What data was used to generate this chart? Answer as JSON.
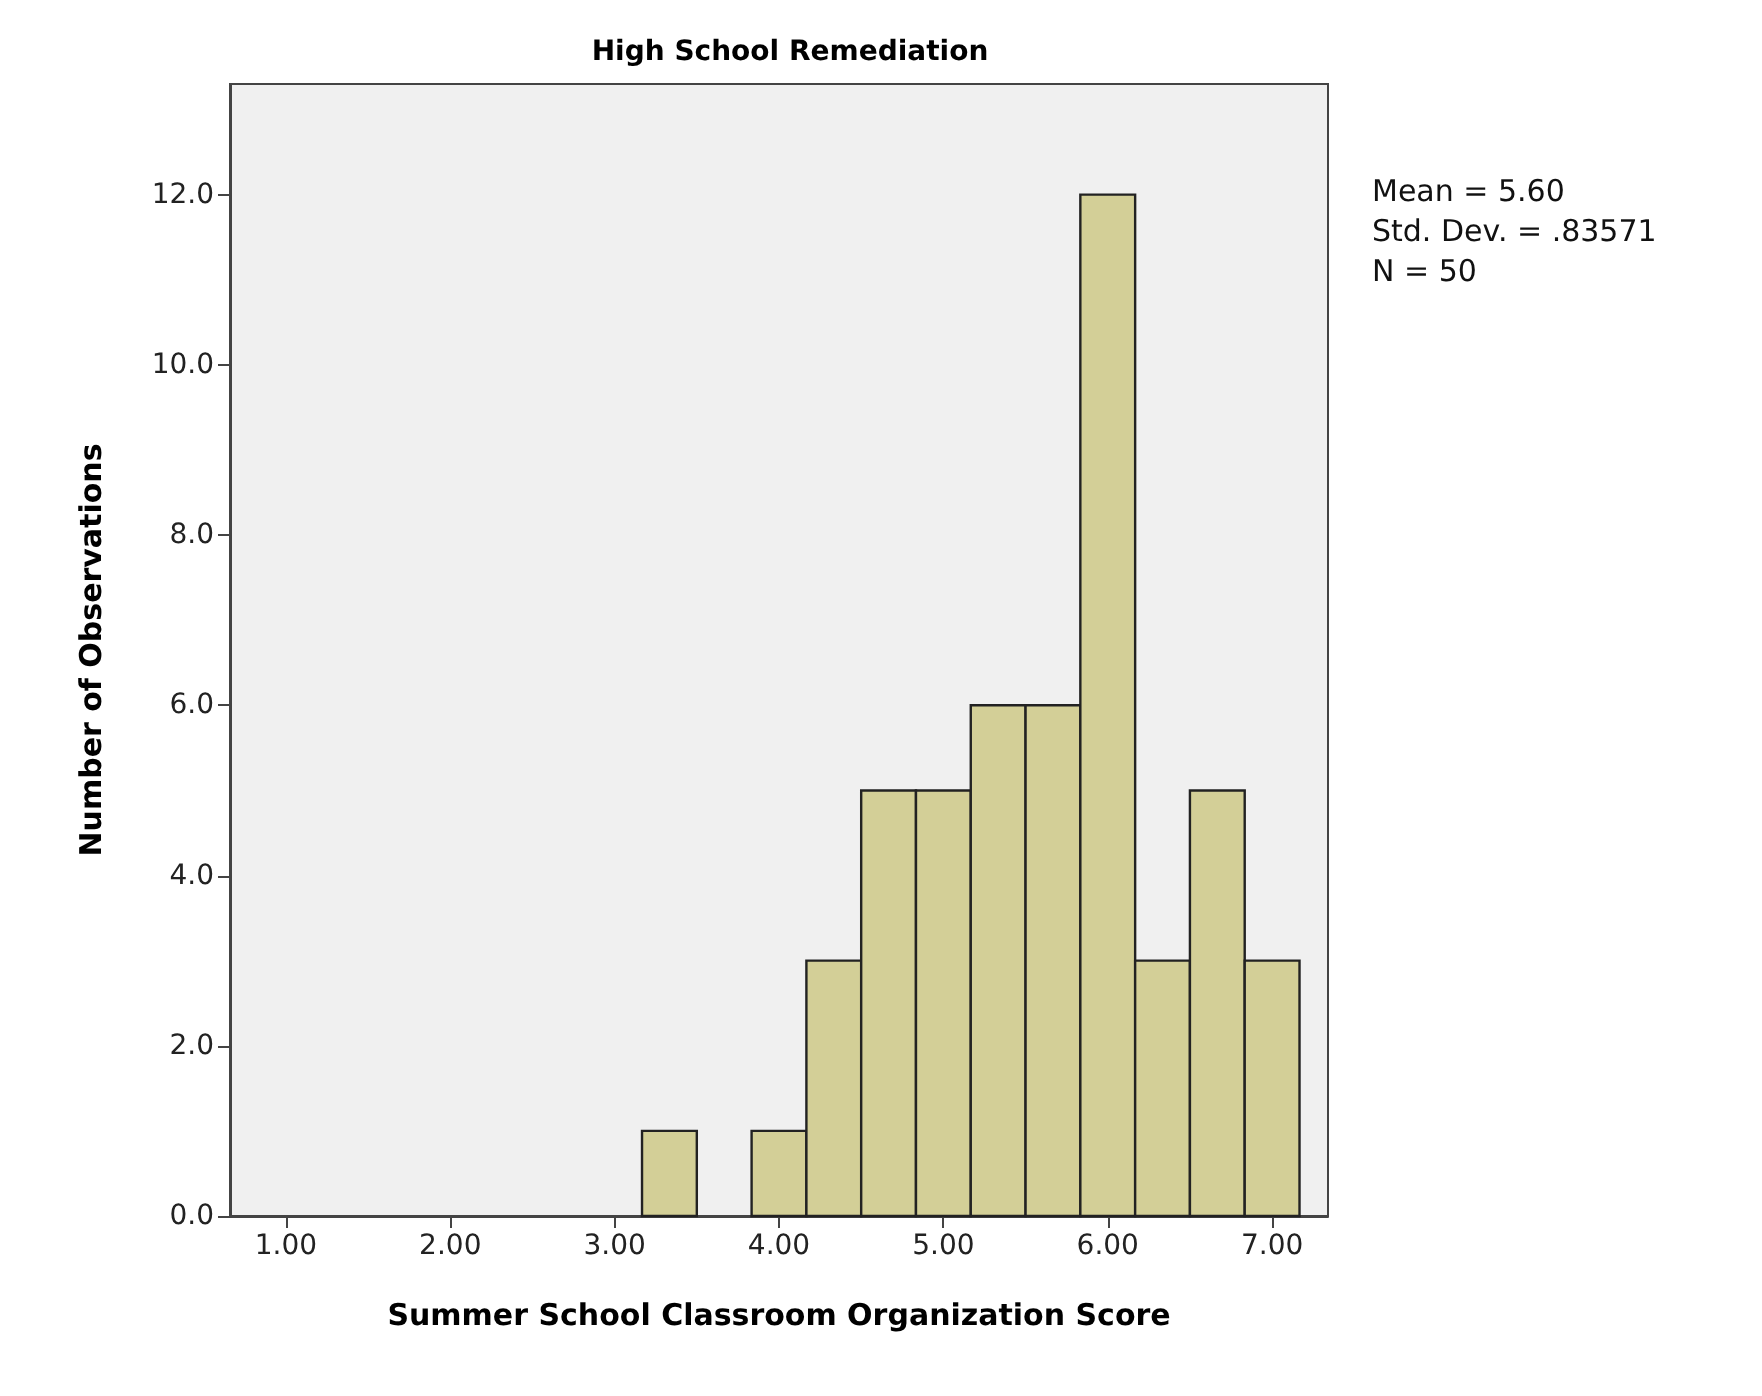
{
  "chart_data": {
    "type": "histogram",
    "title": "High School Remediation",
    "xlabel": "Summer School Classroom Organization Score",
    "ylabel": "Number of Observations",
    "bins": [
      3.1667,
      3.5,
      3.8333,
      4.1667,
      4.5,
      4.8333,
      5.1667,
      5.5,
      5.8333,
      6.1667,
      6.5,
      6.8333,
      7.1667
    ],
    "values": [
      1,
      0,
      1,
      3,
      5,
      5,
      6,
      6,
      12,
      3,
      5,
      3
    ],
    "color": "#d3cf97",
    "xlim": [
      0.66,
      7.34
    ],
    "ylim": [
      0,
      13.3
    ],
    "xticks": [
      {
        "value": 1,
        "label": "1.00"
      },
      {
        "value": 2,
        "label": "2.00"
      },
      {
        "value": 3,
        "label": "3.00"
      },
      {
        "value": 4,
        "label": "4.00"
      },
      {
        "value": 5,
        "label": "5.00"
      },
      {
        "value": 6,
        "label": "6.00"
      },
      {
        "value": 7,
        "label": "7.00"
      }
    ],
    "yticks": [
      {
        "value": 0,
        "label": "0.0"
      },
      {
        "value": 2,
        "label": "2.0"
      },
      {
        "value": 4,
        "label": "4.0"
      },
      {
        "value": 6,
        "label": "6.0"
      },
      {
        "value": 8,
        "label": "8.0"
      },
      {
        "value": 10,
        "label": "10.0"
      },
      {
        "value": 12,
        "label": "12.0"
      }
    ],
    "annotations": [
      "Mean = 5.60",
      "Std. Dev. = .83571",
      "N = 50"
    ],
    "grid": false
  }
}
